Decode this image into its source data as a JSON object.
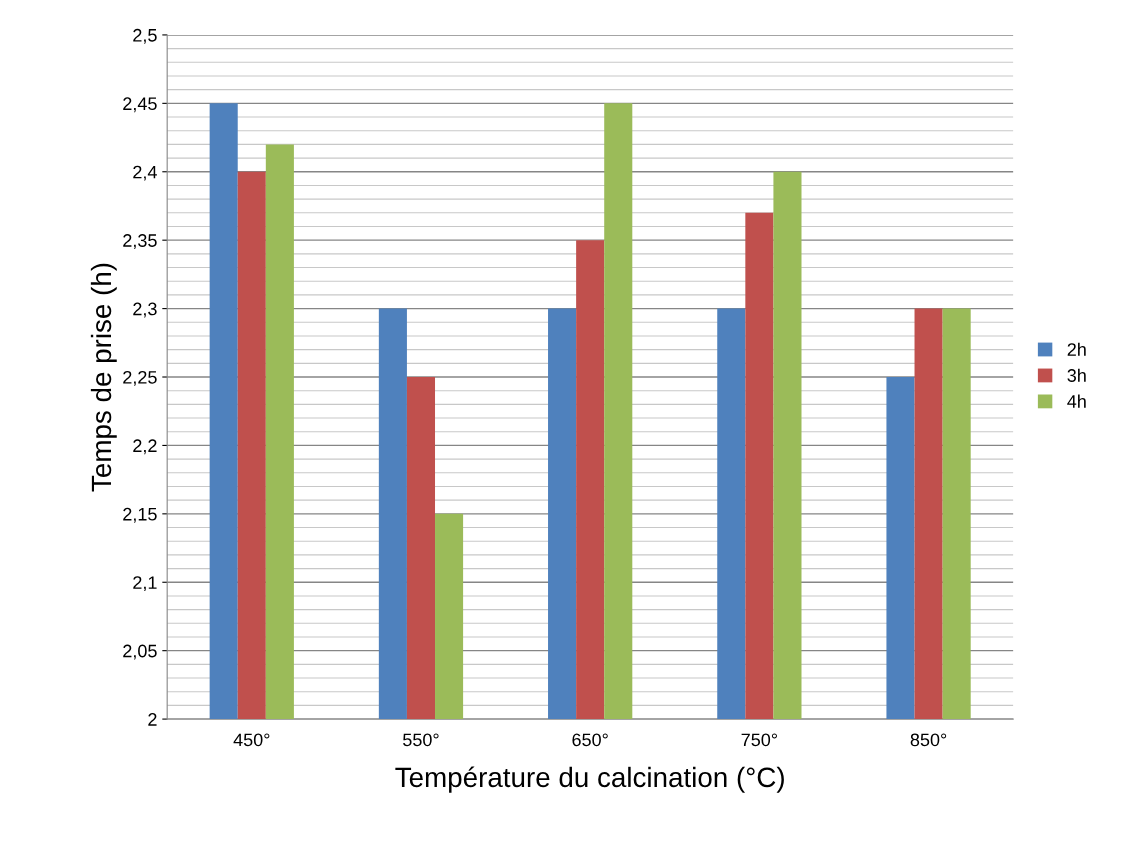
{
  "chart_data": {
    "type": "bar",
    "xlabel": "Température du calcination (°C)",
    "ylabel": "Temps de prise (h)",
    "categories": [
      "450°",
      "550°",
      "650°",
      "750°",
      "850°"
    ],
    "series": [
      {
        "name": "2h",
        "color": "#4f81bd",
        "values": [
          2.45,
          2.3,
          2.3,
          2.3,
          2.25
        ]
      },
      {
        "name": "3h",
        "color": "#c0504d",
        "values": [
          2.4,
          2.25,
          2.35,
          2.37,
          2.3
        ]
      },
      {
        "name": "4h",
        "color": "#9bbb59",
        "values": [
          2.42,
          2.15,
          2.45,
          2.4,
          2.3
        ]
      }
    ],
    "ylim": [
      2,
      2.5
    ],
    "yticks": [
      {
        "value": 2,
        "label": "2"
      },
      {
        "value": 2.05,
        "label": "2,05"
      },
      {
        "value": 2.1,
        "label": "2,1"
      },
      {
        "value": 2.15,
        "label": "2,15"
      },
      {
        "value": 2.2,
        "label": "2,2"
      },
      {
        "value": 2.25,
        "label": "2,25"
      },
      {
        "value": 2.3,
        "label": "2,3"
      },
      {
        "value": 2.35,
        "label": "2,35"
      },
      {
        "value": 2.4,
        "label": "2,4"
      },
      {
        "value": 2.45,
        "label": "2,45"
      },
      {
        "value": 2.5,
        "label": "2,5"
      }
    ],
    "grid": "y",
    "legend": "right"
  }
}
